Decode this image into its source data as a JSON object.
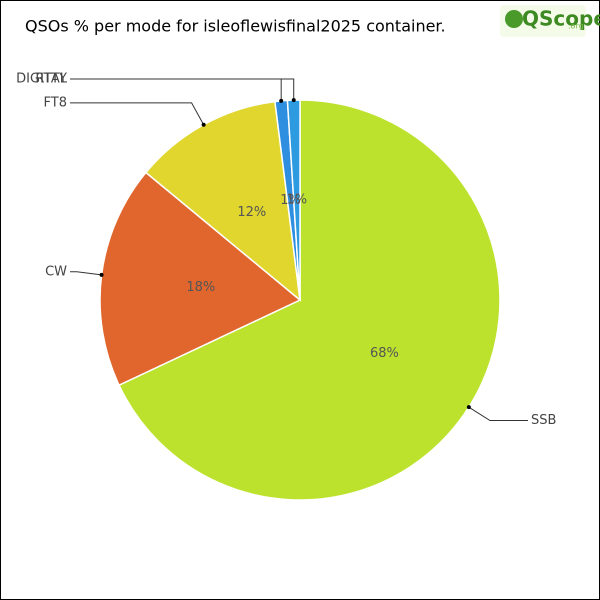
{
  "chart_data": {
    "type": "pie",
    "title": "QSOs % per mode for isleoflewisfinal2025 container.",
    "logo": {
      "text": "QScope",
      "suffix": ".org"
    },
    "categories": [
      "SSB",
      "CW",
      "FT8",
      "DIGITAL",
      "RTTY"
    ],
    "values": [
      68,
      18,
      12,
      1,
      1
    ],
    "value_labels": [
      "68%",
      "18%",
      "12%",
      "1%",
      "1%"
    ],
    "colors": [
      "#bde22e",
      "#e0662e",
      "#e0d62e",
      "#2e8ee0",
      "#2e9ae0"
    ]
  }
}
